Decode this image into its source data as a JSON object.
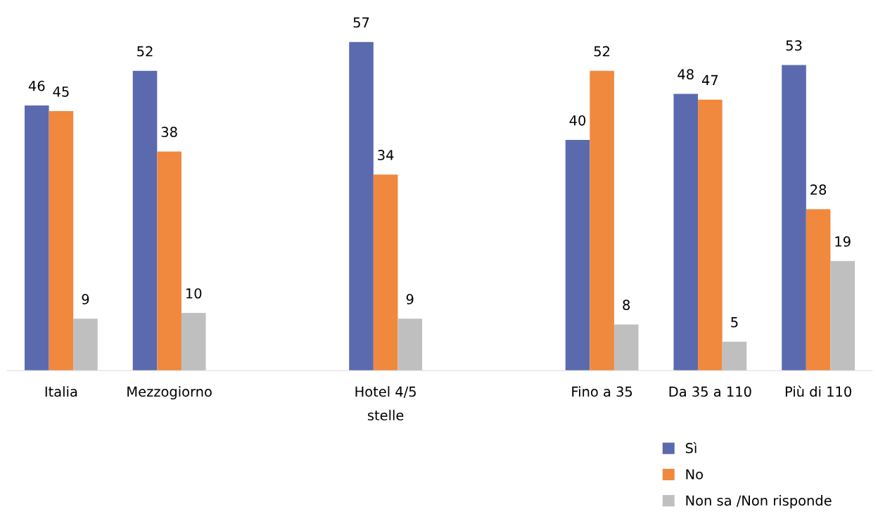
{
  "chart_data": {
    "type": "bar",
    "data_labels": true,
    "legend": "bottom right",
    "grid": false,
    "categories": [
      "Italia",
      "Mezzogiorno",
      null,
      "Hotel 4/5\nstelle",
      null,
      "Fino a 35",
      "Da 35 a 110",
      "Più di 110"
    ],
    "series": [
      {
        "name": "Sì",
        "color": "#5b6aae",
        "values": [
          46,
          52,
          null,
          57,
          null,
          40,
          48,
          53
        ]
      },
      {
        "name": "No",
        "color": "#f0883e",
        "values": [
          45,
          38,
          null,
          34,
          null,
          52,
          47,
          28
        ]
      },
      {
        "name": "Non sa /Non risponde",
        "color": "#bfbfbf",
        "values": [
          9,
          10,
          null,
          9,
          null,
          8,
          5,
          19
        ]
      }
    ]
  }
}
